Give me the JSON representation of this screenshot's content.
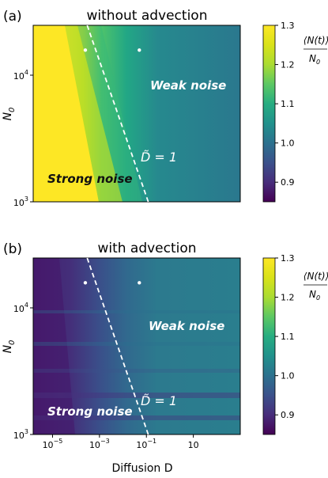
{
  "chart_data": [
    {
      "type": "heatmap",
      "panel_label": "(a)",
      "title": "without advection",
      "xlabel": "",
      "ylabel": "N",
      "ylabel_sub": "0",
      "x_scale": "log",
      "y_scale": "log",
      "xlim": [
        1.5e-06,
        1000
      ],
      "ylim": [
        1000,
        27000
      ],
      "x_ticks": [],
      "y_ticks": [
        {
          "value": 1000,
          "base": "10",
          "exp": "3"
        },
        {
          "value": 10000,
          "base": "10",
          "exp": "4"
        }
      ],
      "colorbar": {
        "min": 0.85,
        "max": 1.3,
        "ticks": [
          "0.9",
          "1.0",
          "1.1",
          "1.2",
          "1.3"
        ],
        "tick_values": [
          0.9,
          1.0,
          1.1,
          1.2,
          1.3
        ],
        "label_num": "⟨N(t)⟩",
        "label_den": "N",
        "label_den_sub": "0",
        "colormap": "viridis"
      },
      "regions": [
        {
          "label": "Strong noise",
          "value_range": [
            1.0,
            1.3
          ]
        },
        {
          "label": "Weak noise",
          "value_range": [
            1.0,
            1.05
          ]
        }
      ],
      "boundary_line": {
        "style": "dashed",
        "label_pre": "D̃",
        "label_post": " = 1",
        "points": [
          {
            "x": 0.0003,
            "y": 27000
          },
          {
            "x": 0.12,
            "y": 1000
          }
        ]
      },
      "markers": [
        {
          "x": 0.00025,
          "y": 17000
        },
        {
          "x": 0.05,
          "y": 17000
        }
      ]
    },
    {
      "type": "heatmap",
      "panel_label": "(b)",
      "title": "with advection",
      "xlabel": "Diffusion D",
      "ylabel": "N",
      "ylabel_sub": "0",
      "x_scale": "log",
      "y_scale": "log",
      "xlim": [
        1.5e-06,
        1000
      ],
      "ylim": [
        1000,
        27000
      ],
      "x_ticks": [
        {
          "value": 1e-05,
          "base": "10",
          "exp": "−5"
        },
        {
          "value": 0.001,
          "base": "10",
          "exp": "−3"
        },
        {
          "value": 0.1,
          "base": "10",
          "exp": "−1"
        },
        {
          "value": 10,
          "base": "10",
          "exp": ""
        }
      ],
      "y_ticks": [
        {
          "value": 1000,
          "base": "10",
          "exp": "3"
        },
        {
          "value": 10000,
          "base": "10",
          "exp": "4"
        }
      ],
      "colorbar": {
        "min": 0.85,
        "max": 1.3,
        "ticks": [
          "0.9",
          "1.0",
          "1.1",
          "1.2",
          "1.3"
        ],
        "tick_values": [
          0.9,
          1.0,
          1.1,
          1.2,
          1.3
        ],
        "label_num": "⟨N(t)⟩",
        "label_den": "N",
        "label_den_sub": "0",
        "colormap": "viridis"
      },
      "regions": [
        {
          "label": "Strong noise",
          "value_range": [
            0.85,
            1.0
          ]
        },
        {
          "label": "Weak noise",
          "value_range": [
            1.0,
            1.03
          ]
        }
      ],
      "boundary_line": {
        "style": "dashed",
        "label_pre": "D̃",
        "label_post": " = 1",
        "points": [
          {
            "x": 0.0003,
            "y": 27000
          },
          {
            "x": 0.12,
            "y": 1000
          }
        ]
      },
      "markers": [
        {
          "x": 0.00025,
          "y": 17000
        },
        {
          "x": 0.05,
          "y": 17000
        }
      ]
    }
  ]
}
